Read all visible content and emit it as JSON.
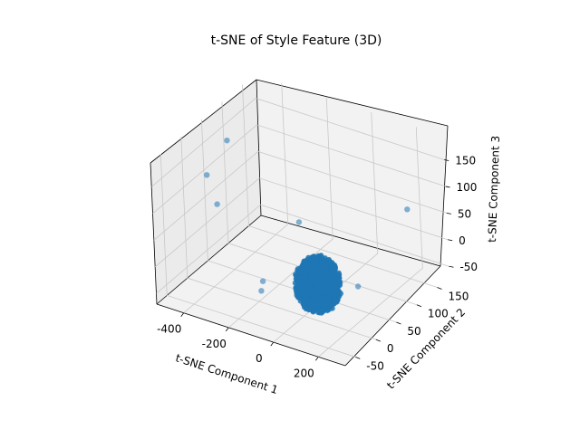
{
  "chart_data": {
    "type": "scatter",
    "projection": "3d",
    "title": "t-SNE of Style Feature (3D)",
    "xlabel": "t-SNE Component 1",
    "ylabel": "t-SNE Component 2",
    "zlabel": "t-SNE Component 3",
    "xlim": [
      -520,
      320
    ],
    "ylim": [
      -75,
      180
    ],
    "zlim": [
      -70,
      195
    ],
    "xticks": [
      -400,
      -200,
      0,
      200
    ],
    "yticks": [
      -50,
      0,
      50,
      100,
      150
    ],
    "zticks": [
      -50,
      0,
      50,
      100,
      150
    ],
    "grid": true,
    "marker_color": "#1f77b4",
    "cluster": {
      "description": "dense ellipsoidal cloud of points",
      "x_range": [
        -40,
        140
      ],
      "y_range": [
        -20,
        40
      ],
      "z_range": [
        -60,
        40
      ]
    },
    "outliers": [
      {
        "x": -390,
        "y": 40,
        "z": 180
      },
      {
        "x": -450,
        "y": 20,
        "z": 120
      },
      {
        "x": -390,
        "y": 10,
        "z": 80
      },
      {
        "x": -100,
        "y": 50,
        "z": 60
      },
      {
        "x": 250,
        "y": 0,
        "z": 20
      },
      {
        "x": 200,
        "y": 150,
        "z": 60
      },
      {
        "x": -150,
        "y": -20,
        "z": -30
      },
      {
        "x": -160,
        "y": -10,
        "z": -20
      }
    ]
  }
}
